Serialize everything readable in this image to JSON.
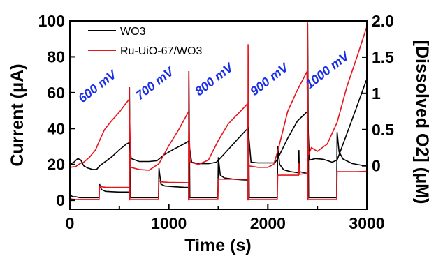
{
  "chart_data": {
    "type": "line",
    "xlabel": "Time (s)",
    "ylabel_left": "Current (μA)",
    "ylabel_right": "[Dissolved O2] (μM)",
    "xlim": [
      0,
      3000
    ],
    "ylim_left": [
      -5,
      100
    ],
    "ylim_right": [
      -0.6,
      2.0
    ],
    "x_ticks": [
      "0",
      "1000",
      "2000",
      "3000"
    ],
    "y_left_ticks": [
      "0",
      "20",
      "40",
      "60",
      "80",
      "100"
    ],
    "y_right_ticks": [
      "0",
      "0.5",
      "1",
      "1.5",
      "2.0"
    ],
    "legend_position": "top-left",
    "annotations": [
      "600 mV",
      "700 mV",
      "800 mV",
      "900 mV",
      "1000 mV"
    ],
    "current_series": [
      {
        "name": "WO3",
        "color": "#000000",
        "points": [
          [
            0,
            3
          ],
          [
            30,
            2
          ],
          [
            60,
            2
          ],
          [
            100,
            1.5
          ],
          [
            150,
            1.5
          ],
          [
            200,
            1.5
          ],
          [
            250,
            1.5
          ],
          [
            295,
            1.5
          ],
          [
            300,
            9
          ],
          [
            320,
            6
          ],
          [
            360,
            5
          ],
          [
            420,
            4.8
          ],
          [
            500,
            4.6
          ],
          [
            560,
            4.6
          ],
          [
            600,
            4.6
          ],
          [
            600,
            0
          ],
          [
            602,
            63
          ],
          [
            610,
            1.5
          ],
          [
            650,
            1.5
          ],
          [
            700,
            1.5
          ],
          [
            750,
            1.5
          ],
          [
            800,
            1.5
          ],
          [
            850,
            1.5
          ],
          [
            895,
            1.5
          ],
          [
            900,
            18
          ],
          [
            920,
            9
          ],
          [
            960,
            8
          ],
          [
            1050,
            7.6
          ],
          [
            1150,
            7.3
          ],
          [
            1200,
            7.2
          ],
          [
            1200,
            0
          ],
          [
            1202,
            72
          ],
          [
            1212,
            1.5
          ],
          [
            1300,
            1.5
          ],
          [
            1400,
            1.5
          ],
          [
            1495,
            1.5
          ],
          [
            1500,
            24
          ],
          [
            1520,
            14
          ],
          [
            1560,
            12.5
          ],
          [
            1650,
            11.8
          ],
          [
            1750,
            11.4
          ],
          [
            1800,
            11.3
          ],
          [
            1800,
            0
          ],
          [
            1802,
            81
          ],
          [
            1812,
            1.5
          ],
          [
            1900,
            1.5
          ],
          [
            2000,
            1.5
          ],
          [
            2095,
            1.5
          ],
          [
            2100,
            30
          ],
          [
            2120,
            20
          ],
          [
            2160,
            17
          ],
          [
            2230,
            16
          ],
          [
            2300,
            15.4
          ],
          [
            2310,
            15.2
          ],
          [
            2314,
            28
          ],
          [
            2318,
            16
          ],
          [
            2400,
            15
          ],
          [
            2400,
            0
          ],
          [
            2402,
            98
          ],
          [
            2412,
            1.5
          ],
          [
            2500,
            1.5
          ],
          [
            2600,
            1.5
          ],
          [
            2695,
            1.5
          ],
          [
            2700,
            38
          ],
          [
            2720,
            27
          ],
          [
            2760,
            23
          ],
          [
            2850,
            20.5
          ],
          [
            2950,
            19.5
          ],
          [
            3000,
            19.2
          ]
        ]
      },
      {
        "name": "Ru-UiO-67/WO3",
        "color": "#e8141b",
        "points": [
          [
            0,
            1
          ],
          [
            30,
            0.6
          ],
          [
            60,
            0.5
          ],
          [
            100,
            0.4
          ],
          [
            200,
            0.4
          ],
          [
            295,
            0.4
          ],
          [
            300,
            8
          ],
          [
            310,
            7.6
          ],
          [
            360,
            7.3
          ],
          [
            450,
            7.2
          ],
          [
            560,
            7.2
          ],
          [
            600,
            7.2
          ],
          [
            600,
            0
          ],
          [
            601,
            63
          ],
          [
            606,
            0.5
          ],
          [
            650,
            0.5
          ],
          [
            750,
            0.5
          ],
          [
            850,
            0.5
          ],
          [
            895,
            0.5
          ],
          [
            900,
            11
          ],
          [
            920,
            10.3
          ],
          [
            1000,
            10
          ],
          [
            1100,
            9.9
          ],
          [
            1200,
            9.8
          ],
          [
            1200,
            0
          ],
          [
            1201,
            72
          ],
          [
            1206,
            0.5
          ],
          [
            1300,
            0.5
          ],
          [
            1400,
            0.5
          ],
          [
            1495,
            0.5
          ],
          [
            1500,
            12
          ],
          [
            1520,
            11.8
          ],
          [
            1600,
            11.8
          ],
          [
            1700,
            11.8
          ],
          [
            1800,
            11.8
          ],
          [
            1800,
            0
          ],
          [
            1801,
            87
          ],
          [
            1806,
            0.5
          ],
          [
            1900,
            0.5
          ],
          [
            2000,
            0.5
          ],
          [
            2095,
            0.5
          ],
          [
            2100,
            14
          ],
          [
            2150,
            14
          ],
          [
            2300,
            14
          ],
          [
            2310,
            14
          ],
          [
            2314,
            21
          ],
          [
            2318,
            14.5
          ],
          [
            2400,
            15
          ],
          [
            2400,
            0
          ],
          [
            2401,
            100
          ],
          [
            2406,
            0.5
          ],
          [
            2500,
            0.5
          ],
          [
            2600,
            0.5
          ],
          [
            2695,
            0.5
          ],
          [
            2700,
            16
          ],
          [
            2800,
            16
          ],
          [
            2900,
            16
          ],
          [
            3000,
            16.2
          ]
        ]
      }
    ],
    "o2_series": [
      {
        "name": "WO3",
        "color": "#000000",
        "points": [
          [
            0,
            0.02
          ],
          [
            40,
            0.05
          ],
          [
            80,
            0.1
          ],
          [
            110,
            0.08
          ],
          [
            140,
            0
          ],
          [
            180,
            -0.03
          ],
          [
            230,
            -0.05
          ],
          [
            270,
            -0.05
          ],
          [
            300,
            0
          ],
          [
            350,
            0.05
          ],
          [
            420,
            0.12
          ],
          [
            500,
            0.22
          ],
          [
            570,
            0.3
          ],
          [
            600,
            0.32
          ],
          [
            620,
            0.1
          ],
          [
            700,
            0.06
          ],
          [
            800,
            0.06
          ],
          [
            880,
            0.07
          ],
          [
            950,
            0.15
          ],
          [
            1050,
            0.23
          ],
          [
            1150,
            0.3
          ],
          [
            1200,
            0.34
          ],
          [
            1230,
            0.05
          ],
          [
            1300,
            0.03
          ],
          [
            1400,
            0.03
          ],
          [
            1480,
            0.05
          ],
          [
            1550,
            0.15
          ],
          [
            1650,
            0.3
          ],
          [
            1750,
            0.45
          ],
          [
            1800,
            0.52
          ],
          [
            1830,
            0.05
          ],
          [
            1900,
            0.04
          ],
          [
            2000,
            0.04
          ],
          [
            2070,
            0.04
          ],
          [
            2100,
            0.1
          ],
          [
            2200,
            0.38
          ],
          [
            2300,
            0.62
          ],
          [
            2400,
            0.75
          ],
          [
            2420,
            0.08
          ],
          [
            2480,
            0.1
          ],
          [
            2560,
            0.09
          ],
          [
            2650,
            0.05
          ],
          [
            2700,
            0.08
          ],
          [
            2800,
            0.45
          ],
          [
            2900,
            0.82
          ],
          [
            3000,
            1.2
          ]
        ]
      },
      {
        "name": "Ru-UiO-67/WO3",
        "color": "#e8141b",
        "points": [
          [
            0,
            -0.02
          ],
          [
            60,
            -0.01
          ],
          [
            100,
            0.03
          ],
          [
            140,
            0.05
          ],
          [
            200,
            0.12
          ],
          [
            260,
            0.22
          ],
          [
            300,
            0.35
          ],
          [
            350,
            0.5
          ],
          [
            420,
            0.62
          ],
          [
            500,
            0.74
          ],
          [
            560,
            0.85
          ],
          [
            600,
            0.92
          ],
          [
            615,
            -0.02
          ],
          [
            700,
            -0.05
          ],
          [
            800,
            -0.06
          ],
          [
            900,
            0.03
          ],
          [
            1000,
            0.28
          ],
          [
            1100,
            0.5
          ],
          [
            1200,
            0.75
          ],
          [
            1215,
            0.05
          ],
          [
            1300,
            0.02
          ],
          [
            1400,
            0.08
          ],
          [
            1500,
            0.35
          ],
          [
            1600,
            0.58
          ],
          [
            1700,
            0.72
          ],
          [
            1790,
            0.85
          ],
          [
            1805,
            0.0
          ],
          [
            1900,
            -0.02
          ],
          [
            2000,
            -0.02
          ],
          [
            2060,
            0.02
          ],
          [
            2100,
            0.2
          ],
          [
            2200,
            0.75
          ],
          [
            2300,
            1.05
          ],
          [
            2395,
            1.3
          ],
          [
            2410,
            0.15
          ],
          [
            2440,
            0.25
          ],
          [
            2500,
            0.2
          ],
          [
            2600,
            0.3
          ],
          [
            2700,
            0.6
          ],
          [
            2800,
            1.1
          ],
          [
            2900,
            1.5
          ],
          [
            3000,
            1.92
          ]
        ]
      }
    ]
  },
  "legend": {
    "items": [
      {
        "label": "WO3",
        "color": "#000000"
      },
      {
        "label": "Ru-UiO-67/WO3",
        "color": "#e8141b"
      }
    ]
  }
}
